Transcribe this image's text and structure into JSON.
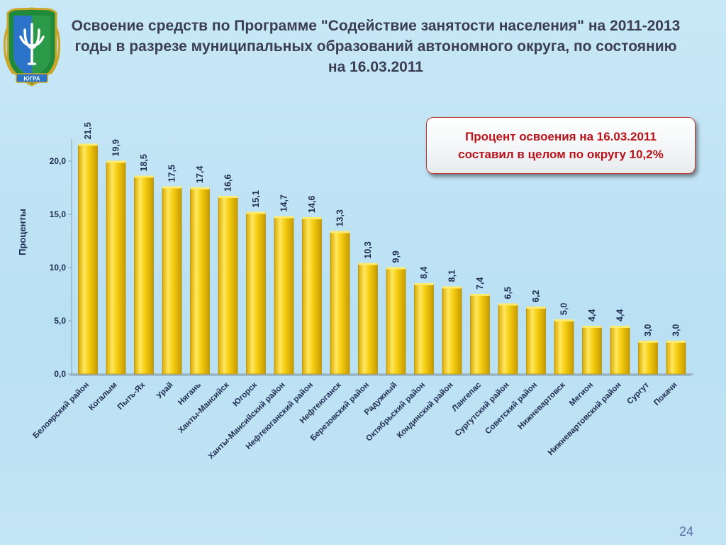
{
  "slide": {
    "title": "Освоение средств по Программе \"Содействие занятости населения\" на 2011-2013 годы в разрезе муниципальных образований автономного округа,  по состоянию на  16.03.2011",
    "callout_line1": "Процент освоения на 16.03.2011",
    "callout_line2": "составил в целом по округу 10,2%",
    "page_number": "24",
    "logo_text": "ЮГРА"
  },
  "colors": {
    "bar_fill": "#f1c400",
    "bar_highlight": "#ffec6e",
    "bar_edge": "#b89000",
    "axis_text": "#1f2d52",
    "callout_border": "#c0392b",
    "callout_text": "#b8141a"
  },
  "chart_data": {
    "type": "bar",
    "title": "",
    "xlabel": "",
    "ylabel": "Проценты",
    "ylim": [
      0,
      22
    ],
    "yticks": [
      0,
      5,
      10,
      15,
      20
    ],
    "ytick_labels": [
      "0,0",
      "5,0",
      "10,0",
      "15,0",
      "20,0"
    ],
    "grid": false,
    "legend": "none",
    "categories": [
      "Белоярский район",
      "Когалым",
      "Пыть-Ях",
      "Урай",
      "Нягань",
      "Ханты-Мансийск",
      "Югорск",
      "Ханты-Мансийский район",
      "Нефтеюганский район",
      "Нефтеюганск",
      "Березовский район",
      "Радужный",
      "Октябрьский район",
      "Кондинский район",
      "Лангепас",
      "Сургутский район",
      "Советский район",
      "Нижневартовск",
      "Мегион",
      "Нижневартовский район",
      "Сургут",
      "Покачи"
    ],
    "values": [
      21.5,
      19.9,
      18.5,
      17.5,
      17.4,
      16.6,
      15.1,
      14.7,
      14.6,
      13.3,
      10.3,
      9.9,
      8.4,
      8.1,
      7.4,
      6.5,
      6.2,
      5.0,
      4.4,
      4.4,
      3.0,
      3.0
    ],
    "value_labels": [
      "21,5",
      "19,9",
      "18,5",
      "17,5",
      "17,4",
      "16,6",
      "15,1",
      "14,7",
      "14,6",
      "13,3",
      "10,3",
      "9,9",
      "8,4",
      "8,1",
      "7,4",
      "6,5",
      "6,2",
      "5,0",
      "4,4",
      "4,4",
      "3,0",
      "3,0"
    ]
  }
}
